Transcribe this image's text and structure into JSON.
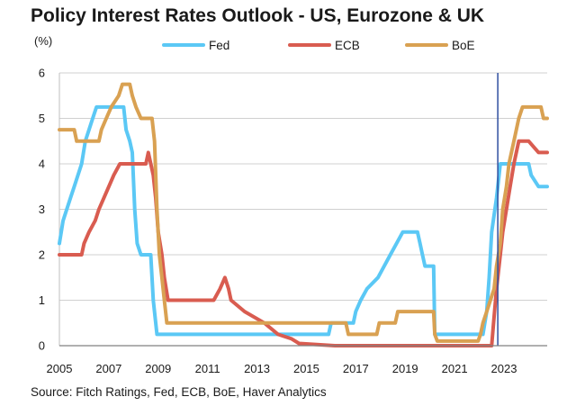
{
  "chart_data": {
    "type": "line",
    "title": "Policy Interest Rates Outlook - US, Eurozone & UK",
    "ylabel": "(%)",
    "xlabel": "",
    "source": "Source: Fitch Ratings, Fed, ECB, BoE, Haver Analytics",
    "xlim": [
      2005,
      2024.75
    ],
    "ylim": [
      0,
      6
    ],
    "x_ticks": [
      2005,
      2007,
      2009,
      2011,
      2013,
      2015,
      2017,
      2019,
      2021,
      2023
    ],
    "y_ticks": [
      0,
      1,
      2,
      3,
      4,
      5,
      6
    ],
    "grid": true,
    "legend_position": "top",
    "vertical_marker": {
      "x": 2022.75,
      "color": "#2f4fa0"
    },
    "series": [
      {
        "name": "Fed",
        "color": "#5bc8f5",
        "points": [
          [
            2005,
            2.25
          ],
          [
            2005.15,
            2.75
          ],
          [
            2005.3,
            3.0
          ],
          [
            2005.45,
            3.25
          ],
          [
            2005.6,
            3.5
          ],
          [
            2005.75,
            3.75
          ],
          [
            2005.9,
            4.0
          ],
          [
            2006.05,
            4.5
          ],
          [
            2006.2,
            4.75
          ],
          [
            2006.35,
            5.0
          ],
          [
            2006.5,
            5.25
          ],
          [
            2007.6,
            5.25
          ],
          [
            2007.7,
            4.75
          ],
          [
            2007.85,
            4.5
          ],
          [
            2007.95,
            4.25
          ],
          [
            2008.05,
            3.0
          ],
          [
            2008.15,
            2.25
          ],
          [
            2008.3,
            2.0
          ],
          [
            2008.7,
            2.0
          ],
          [
            2008.8,
            1.0
          ],
          [
            2008.95,
            0.25
          ],
          [
            2015.9,
            0.25
          ],
          [
            2016.0,
            0.5
          ],
          [
            2016.9,
            0.5
          ],
          [
            2017.0,
            0.75
          ],
          [
            2017.2,
            1.0
          ],
          [
            2017.45,
            1.25
          ],
          [
            2017.9,
            1.5
          ],
          [
            2018.15,
            1.75
          ],
          [
            2018.4,
            2.0
          ],
          [
            2018.65,
            2.25
          ],
          [
            2018.9,
            2.5
          ],
          [
            2019.5,
            2.5
          ],
          [
            2019.6,
            2.25
          ],
          [
            2019.7,
            2.0
          ],
          [
            2019.8,
            1.75
          ],
          [
            2020.15,
            1.75
          ],
          [
            2020.2,
            0.25
          ],
          [
            2022.15,
            0.25
          ],
          [
            2022.3,
            0.75
          ],
          [
            2022.4,
            1.5
          ],
          [
            2022.5,
            2.5
          ],
          [
            2022.7,
            3.25
          ],
          [
            2022.85,
            4.0
          ],
          [
            2024.0,
            4.0
          ],
          [
            2024.1,
            3.75
          ],
          [
            2024.4,
            3.5
          ],
          [
            2024.75,
            3.5
          ]
        ]
      },
      {
        "name": "ECB",
        "color": "#d95c50",
        "points": [
          [
            2005,
            2.0
          ],
          [
            2005.9,
            2.0
          ],
          [
            2006.0,
            2.25
          ],
          [
            2006.2,
            2.5
          ],
          [
            2006.45,
            2.75
          ],
          [
            2006.6,
            3.0
          ],
          [
            2006.8,
            3.25
          ],
          [
            2007.0,
            3.5
          ],
          [
            2007.2,
            3.75
          ],
          [
            2007.45,
            4.0
          ],
          [
            2008.5,
            4.0
          ],
          [
            2008.6,
            4.25
          ],
          [
            2008.8,
            3.75
          ],
          [
            2008.9,
            3.25
          ],
          [
            2009.0,
            2.5
          ],
          [
            2009.15,
            2.0
          ],
          [
            2009.25,
            1.5
          ],
          [
            2009.4,
            1.0
          ],
          [
            2011.25,
            1.0
          ],
          [
            2011.5,
            1.25
          ],
          [
            2011.7,
            1.5
          ],
          [
            2011.85,
            1.25
          ],
          [
            2011.95,
            1.0
          ],
          [
            2012.5,
            0.75
          ],
          [
            2013.3,
            0.5
          ],
          [
            2013.85,
            0.25
          ],
          [
            2014.4,
            0.15
          ],
          [
            2014.7,
            0.05
          ],
          [
            2016.15,
            0.0
          ],
          [
            2022.5,
            0.0
          ],
          [
            2022.58,
            0.5
          ],
          [
            2022.7,
            1.25
          ],
          [
            2022.85,
            2.0
          ],
          [
            2022.95,
            2.5
          ],
          [
            2023.1,
            3.0
          ],
          [
            2023.25,
            3.5
          ],
          [
            2023.4,
            4.0
          ],
          [
            2023.6,
            4.5
          ],
          [
            2024.0,
            4.5
          ],
          [
            2024.4,
            4.25
          ],
          [
            2024.75,
            4.25
          ]
        ]
      },
      {
        "name": "BoE",
        "color": "#d9a152",
        "points": [
          [
            2005,
            4.75
          ],
          [
            2005.6,
            4.75
          ],
          [
            2005.7,
            4.5
          ],
          [
            2006.6,
            4.5
          ],
          [
            2006.7,
            4.75
          ],
          [
            2006.9,
            5.0
          ],
          [
            2007.1,
            5.25
          ],
          [
            2007.4,
            5.5
          ],
          [
            2007.55,
            5.75
          ],
          [
            2007.85,
            5.75
          ],
          [
            2007.95,
            5.5
          ],
          [
            2008.1,
            5.25
          ],
          [
            2008.3,
            5.0
          ],
          [
            2008.75,
            5.0
          ],
          [
            2008.85,
            4.5
          ],
          [
            2008.95,
            3.0
          ],
          [
            2009.05,
            2.0
          ],
          [
            2009.15,
            1.5
          ],
          [
            2009.25,
            1.0
          ],
          [
            2009.35,
            0.5
          ],
          [
            2016.6,
            0.5
          ],
          [
            2016.7,
            0.25
          ],
          [
            2017.85,
            0.25
          ],
          [
            2017.95,
            0.5
          ],
          [
            2018.6,
            0.5
          ],
          [
            2018.7,
            0.75
          ],
          [
            2020.15,
            0.75
          ],
          [
            2020.2,
            0.25
          ],
          [
            2020.3,
            0.1
          ],
          [
            2021.95,
            0.1
          ],
          [
            2022.05,
            0.25
          ],
          [
            2022.15,
            0.5
          ],
          [
            2022.3,
            0.75
          ],
          [
            2022.45,
            1.0
          ],
          [
            2022.6,
            1.25
          ],
          [
            2022.7,
            1.75
          ],
          [
            2022.85,
            2.25
          ],
          [
            2022.95,
            3.0
          ],
          [
            2023.1,
            3.5
          ],
          [
            2023.2,
            4.0
          ],
          [
            2023.4,
            4.5
          ],
          [
            2023.6,
            5.0
          ],
          [
            2023.75,
            5.25
          ],
          [
            2024.5,
            5.25
          ],
          [
            2024.6,
            5.0
          ],
          [
            2024.75,
            5.0
          ]
        ]
      }
    ]
  }
}
